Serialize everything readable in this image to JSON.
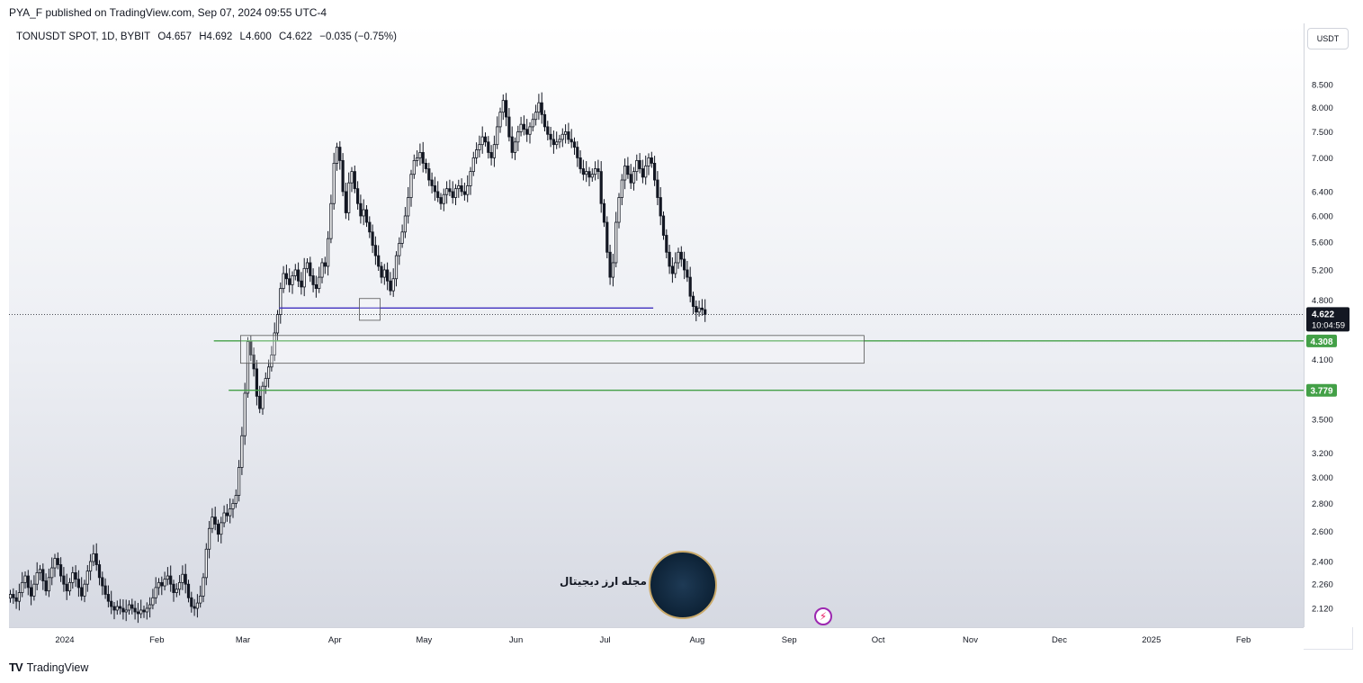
{
  "publisher_line": "PYA_F published on TradingView.com, Sep 07, 2024 09:55 UTC-4",
  "header": {
    "symbol": "TONUSDT SPOT, 1D, BYBIT",
    "open": "O4.657",
    "high": "H4.692",
    "low": "L4.600",
    "close": "C4.622",
    "change": "−0.035 (−0.75%)"
  },
  "currency_button": "USDT",
  "watermark_text": "مجله ارز دیجیتال",
  "brand": "TradingView",
  "colors": {
    "bull_body": "#ffffff",
    "bear_body": "#131722",
    "support_line": "#43a047",
    "neckline": "#3f2fbf",
    "price_label_bg": "#131722",
    "level_label_bg": "#43a047"
  },
  "chart_data": {
    "type": "candlestick",
    "scale": "log",
    "ylim": [
      2.06,
      9.3
    ],
    "xlim": [
      "2024-01-01",
      "2025-02-20"
    ],
    "y_ticks": [
      "8.500",
      "8.000",
      "7.500",
      "7.000",
      "6.400",
      "6.000",
      "5.600",
      "5.200",
      "4.800",
      "4.100",
      "3.500",
      "3.200",
      "3.000",
      "2.800",
      "2.600",
      "2.400",
      "2.260",
      "2.120"
    ],
    "y_tick_values": [
      8.5,
      8.0,
      7.5,
      7.0,
      6.4,
      6.0,
      5.6,
      5.2,
      4.8,
      4.1,
      3.5,
      3.2,
      3.0,
      2.8,
      2.6,
      2.4,
      2.26,
      2.12
    ],
    "x_ticks": [
      {
        "label": "2024",
        "date": "2024-01-01"
      },
      {
        "label": "Feb",
        "date": "2024-02-01"
      },
      {
        "label": "Mar",
        "date": "2024-03-01"
      },
      {
        "label": "Apr",
        "date": "2024-04-01"
      },
      {
        "label": "May",
        "date": "2024-05-01"
      },
      {
        "label": "Jun",
        "date": "2024-06-01"
      },
      {
        "label": "Jul",
        "date": "2024-07-01"
      },
      {
        "label": "Aug",
        "date": "2024-08-01"
      },
      {
        "label": "Sep",
        "date": "2024-09-01"
      },
      {
        "label": "Oct",
        "date": "2024-10-01"
      },
      {
        "label": "Nov",
        "date": "2024-11-01"
      },
      {
        "label": "Dec",
        "date": "2024-12-01"
      },
      {
        "label": "2025",
        "date": "2025-01-01"
      },
      {
        "label": "Feb",
        "date": "2025-02-01"
      }
    ],
    "close_series": {
      "start": "2024-01-01",
      "values": [
        2.2,
        2.18,
        2.16,
        2.21,
        2.27,
        2.31,
        2.24,
        2.19,
        2.26,
        2.33,
        2.35,
        2.28,
        2.22,
        2.3,
        2.36,
        2.42,
        2.38,
        2.31,
        2.26,
        2.22,
        2.27,
        2.33,
        2.29,
        2.24,
        2.19,
        2.26,
        2.34,
        2.4,
        2.45,
        2.38,
        2.3,
        2.25,
        2.2,
        2.16,
        2.13,
        2.11,
        2.13,
        2.12,
        2.1,
        2.11,
        2.14,
        2.12,
        2.1,
        2.09,
        2.11,
        2.1,
        2.12,
        2.14,
        2.18,
        2.24,
        2.27,
        2.25,
        2.29,
        2.31,
        2.26,
        2.21,
        2.23,
        2.27,
        2.32,
        2.26,
        2.18,
        2.13,
        2.12,
        2.15,
        2.19,
        2.3,
        2.48,
        2.62,
        2.7,
        2.65,
        2.58,
        2.66,
        2.73,
        2.71,
        2.76,
        2.8,
        2.86,
        3.08,
        3.35,
        3.75,
        4.3,
        4.15,
        4.0,
        3.72,
        3.6,
        3.82,
        3.9,
        4.02,
        4.15,
        4.4,
        4.62,
        4.95,
        5.15,
        5.08,
        5.0,
        5.12,
        5.2,
        5.05,
        4.97,
        5.22,
        5.3,
        5.12,
        5.0,
        4.95,
        5.1,
        5.3,
        5.25,
        5.65,
        6.2,
        6.9,
        7.2,
        6.95,
        6.4,
        6.05,
        6.55,
        6.75,
        6.45,
        6.2,
        6.0,
        6.1,
        5.9,
        5.75,
        5.55,
        5.4,
        5.25,
        5.1,
        5.2,
        5.05,
        4.92,
        5.08,
        5.4,
        5.58,
        5.75,
        6.0,
        6.3,
        6.7,
        6.95,
        7.0,
        7.1,
        6.9,
        6.8,
        6.6,
        6.5,
        6.4,
        6.3,
        6.2,
        6.35,
        6.45,
        6.4,
        6.3,
        6.45,
        6.5,
        6.4,
        6.35,
        6.5,
        6.75,
        7.0,
        7.15,
        7.25,
        7.4,
        7.3,
        7.1,
        7.0,
        7.25,
        7.6,
        7.9,
        8.15,
        7.8,
        7.4,
        7.1,
        7.3,
        7.5,
        7.65,
        7.55,
        7.45,
        7.6,
        7.75,
        7.9,
        8.1,
        7.85,
        7.6,
        7.45,
        7.35,
        7.25,
        7.3,
        7.35,
        7.45,
        7.5,
        7.35,
        7.3,
        7.2,
        7.0,
        6.8,
        6.7,
        6.75,
        6.65,
        6.7,
        6.8,
        6.75,
        6.2,
        5.9,
        5.45,
        5.1,
        5.3,
        5.9,
        6.3,
        6.6,
        6.85,
        6.7,
        6.55,
        6.75,
        6.95,
        6.8,
        6.65,
        6.85,
        7.0,
        6.9,
        6.6,
        6.3,
        6.0,
        5.7,
        5.45,
        5.25,
        5.15,
        5.3,
        5.45,
        5.35,
        5.2,
        5.1,
        4.85,
        4.72,
        4.65,
        4.7,
        4.68,
        4.622
      ]
    },
    "annotations": [
      {
        "type": "hline",
        "label": "4.308",
        "price": 4.308,
        "from": "2024-03-10",
        "to": "axis",
        "color": "#43a047"
      },
      {
        "type": "hline",
        "label": "3.779",
        "price": 3.779,
        "from": "2024-03-15",
        "to": "axis",
        "color": "#43a047"
      },
      {
        "type": "segment",
        "price": 4.7,
        "from": "2024-04-01",
        "to": "2024-08-05",
        "color": "#3f2fbf"
      },
      {
        "type": "rect",
        "from": "2024-03-19",
        "to": "2024-10-15",
        "top": 4.37,
        "bottom": 4.06
      },
      {
        "type": "rect",
        "from": "2024-04-28",
        "to": "2024-05-05",
        "top": 4.82,
        "bottom": 4.55
      }
    ],
    "last_price": {
      "label": "4.622",
      "price": 4.622,
      "countdown": "10:04:59"
    }
  }
}
